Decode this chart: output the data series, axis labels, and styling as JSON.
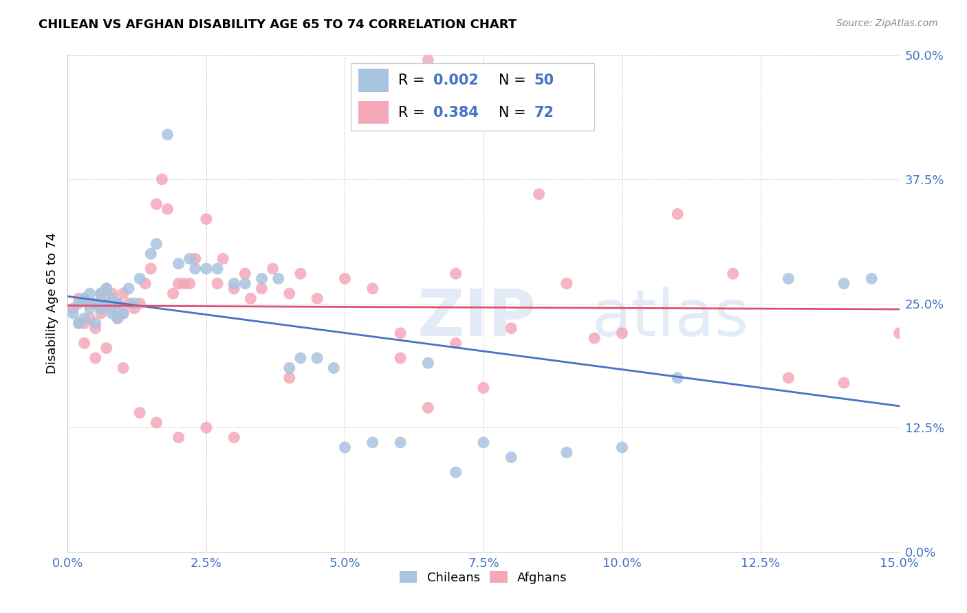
{
  "title": "CHILEAN VS AFGHAN DISABILITY AGE 65 TO 74 CORRELATION CHART",
  "source": "Source: ZipAtlas.com",
  "xlabel_ticks": [
    "0.0%",
    "2.5%",
    "5.0%",
    "7.5%",
    "10.0%",
    "12.5%",
    "15.0%"
  ],
  "ylabel_ticks": [
    "0.0%",
    "12.5%",
    "25.0%",
    "37.5%",
    "50.0%"
  ],
  "xlim": [
    0.0,
    0.15
  ],
  "ylim": [
    0.0,
    0.5
  ],
  "ylabel": "Disability Age 65 to 74",
  "legend_labels": [
    "Chileans",
    "Afghans"
  ],
  "chilean_R": "0.002",
  "chilean_N": "50",
  "afghan_R": "0.384",
  "afghan_N": "72",
  "blue_color": "#A8C4E0",
  "pink_color": "#F4A8B8",
  "blue_line_color": "#4472C4",
  "pink_line_color": "#E05070",
  "watermark_zip": "ZIP",
  "watermark_atlas": "atlas",
  "chilean_x": [
    0.001,
    0.002,
    0.002,
    0.003,
    0.003,
    0.004,
    0.004,
    0.005,
    0.005,
    0.006,
    0.006,
    0.007,
    0.007,
    0.008,
    0.008,
    0.009,
    0.009,
    0.01,
    0.011,
    0.012,
    0.013,
    0.015,
    0.016,
    0.018,
    0.02,
    0.022,
    0.023,
    0.025,
    0.027,
    0.03,
    0.032,
    0.035,
    0.038,
    0.04,
    0.042,
    0.045,
    0.05,
    0.055,
    0.06,
    0.065,
    0.07,
    0.075,
    0.08,
    0.09,
    0.1,
    0.11,
    0.13,
    0.14,
    0.145,
    0.048
  ],
  "chilean_y": [
    0.24,
    0.25,
    0.23,
    0.255,
    0.235,
    0.26,
    0.245,
    0.25,
    0.23,
    0.245,
    0.26,
    0.25,
    0.265,
    0.255,
    0.24,
    0.235,
    0.25,
    0.24,
    0.265,
    0.25,
    0.275,
    0.3,
    0.31,
    0.42,
    0.29,
    0.295,
    0.285,
    0.285,
    0.285,
    0.27,
    0.27,
    0.275,
    0.275,
    0.185,
    0.195,
    0.195,
    0.105,
    0.11,
    0.11,
    0.19,
    0.08,
    0.11,
    0.095,
    0.1,
    0.105,
    0.175,
    0.275,
    0.27,
    0.275,
    0.185
  ],
  "afghan_x": [
    0.001,
    0.002,
    0.002,
    0.003,
    0.003,
    0.004,
    0.004,
    0.005,
    0.005,
    0.006,
    0.006,
    0.007,
    0.007,
    0.008,
    0.008,
    0.009,
    0.009,
    0.01,
    0.01,
    0.011,
    0.012,
    0.013,
    0.014,
    0.015,
    0.016,
    0.017,
    0.018,
    0.019,
    0.02,
    0.021,
    0.022,
    0.023,
    0.025,
    0.027,
    0.028,
    0.03,
    0.032,
    0.033,
    0.035,
    0.037,
    0.04,
    0.042,
    0.045,
    0.05,
    0.055,
    0.06,
    0.065,
    0.07,
    0.075,
    0.08,
    0.085,
    0.09,
    0.095,
    0.1,
    0.11,
    0.12,
    0.13,
    0.14,
    0.15,
    0.003,
    0.005,
    0.007,
    0.01,
    0.013,
    0.016,
    0.02,
    0.025,
    0.03,
    0.04,
    0.06,
    0.065,
    0.07
  ],
  "afghan_y": [
    0.245,
    0.255,
    0.23,
    0.255,
    0.23,
    0.25,
    0.235,
    0.25,
    0.225,
    0.24,
    0.26,
    0.25,
    0.265,
    0.26,
    0.245,
    0.235,
    0.25,
    0.24,
    0.26,
    0.25,
    0.245,
    0.25,
    0.27,
    0.285,
    0.35,
    0.375,
    0.345,
    0.26,
    0.27,
    0.27,
    0.27,
    0.295,
    0.335,
    0.27,
    0.295,
    0.265,
    0.28,
    0.255,
    0.265,
    0.285,
    0.26,
    0.28,
    0.255,
    0.275,
    0.265,
    0.195,
    0.145,
    0.21,
    0.165,
    0.225,
    0.36,
    0.27,
    0.215,
    0.22,
    0.34,
    0.28,
    0.175,
    0.17,
    0.22,
    0.21,
    0.195,
    0.205,
    0.185,
    0.14,
    0.13,
    0.115,
    0.125,
    0.115,
    0.175,
    0.22,
    0.495,
    0.28
  ]
}
